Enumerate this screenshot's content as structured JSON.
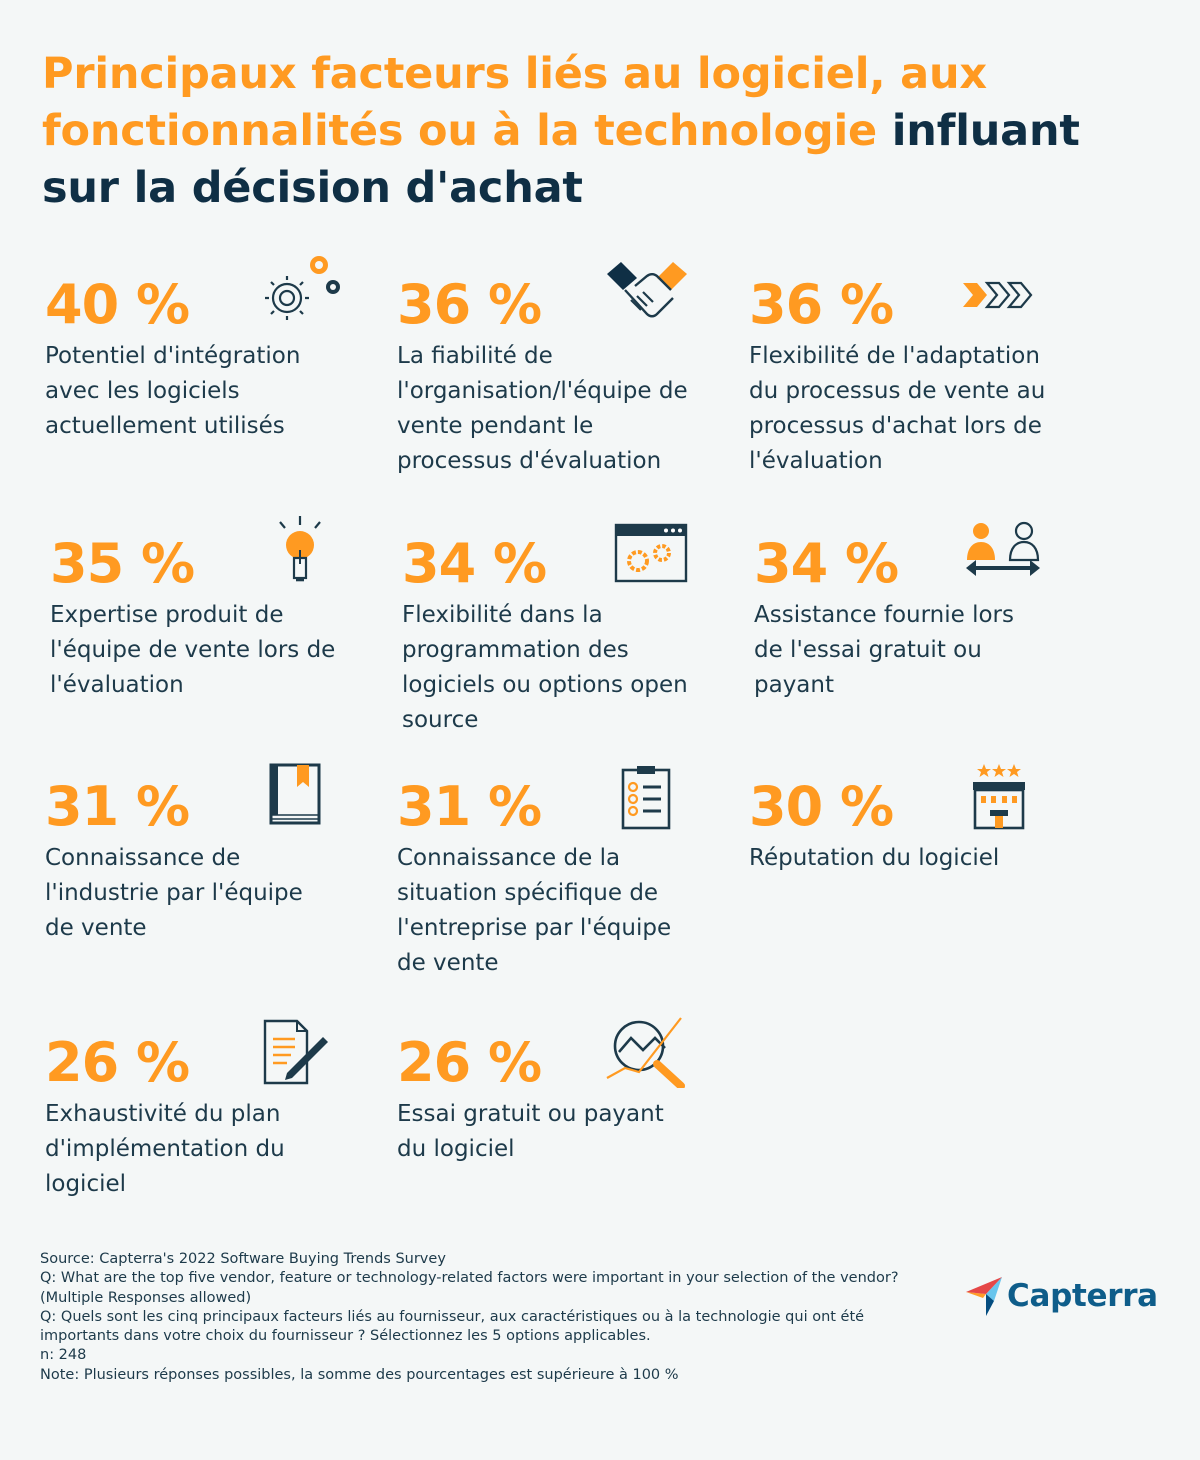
{
  "title": {
    "orange": "Principaux facteurs liés au logiciel, aux fonctionnalités ou à la technologie",
    "dark": "influant sur la décision d'achat"
  },
  "chart_data": {
    "type": "bar",
    "title": "Principaux facteurs liés au logiciel, aux fonctionnalités ou à la technologie influant sur la décision d'achat",
    "unit": "%",
    "categories": [
      "Potentiel d'intégration avec les logiciels actuellement utilisés",
      "La fiabilité de l'organisation/l'équipe de vente pendant le processus d'évaluation",
      "Flexibilité de l'adaptation du processus de vente au processus d'achat lors de l'évaluation",
      "Expertise produit de l'équipe de vente lors de l'évaluation",
      "Flexibilité dans la programmation des logiciels ou options open source",
      "Assistance fournie lors de l'essai gratuit ou payant",
      "Connaissance de l'industrie par l'équipe de vente",
      "Connaissance de la situation spécifique de l'entreprise par l'équipe de vente",
      "Réputation du logiciel",
      "Exhaustivité du plan d'implémentation du logiciel",
      "Essai gratuit ou payant du logiciel"
    ],
    "values": [
      40,
      36,
      36,
      35,
      34,
      34,
      31,
      31,
      30,
      26,
      26
    ]
  },
  "stats": [
    {
      "pct": "40 %",
      "label": "Potentiel d'intégration avec les logiciels actuellement utilisés",
      "icon": "gears-icon"
    },
    {
      "pct": "36 %",
      "label": "La fiabilité de l'organisation/l'équipe de vente pendant le processus d'évaluation",
      "icon": "handshake-icon"
    },
    {
      "pct": "36 %",
      "label": "Flexibilité de l'adaptation du processus de vente au processus d'achat lors de l'évaluation",
      "icon": "chevrons-icon"
    },
    {
      "pct": "35 %",
      "label": "Expertise produit de l'équipe de vente lors de l'évaluation",
      "icon": "lightbulb-icon"
    },
    {
      "pct": "34 %",
      "label": "Flexibilité dans la programmation des logiciels ou options open source",
      "icon": "browser-gears-icon"
    },
    {
      "pct": "34 %",
      "label": "Assistance fournie lors de l'essai gratuit ou payant",
      "icon": "people-exchange-icon"
    },
    {
      "pct": "31 %",
      "label": "Connaissance de l'industrie par l'équipe de vente",
      "icon": "book-icon"
    },
    {
      "pct": "31 %",
      "label": "Connaissance de la situation spécifique de l'entreprise par l'équipe de vente",
      "icon": "clipboard-checklist-icon"
    },
    {
      "pct": "30 %",
      "label": "Réputation du logiciel",
      "icon": "hotel-stars-icon"
    },
    {
      "pct": "26 %",
      "label": "Exhaustivité du plan d'implémentation du logiciel",
      "icon": "document-pen-icon"
    },
    {
      "pct": "26 %",
      "label": "Essai gratuit ou payant du logiciel",
      "icon": "magnifier-chart-icon"
    }
  ],
  "footer": {
    "source": "Source: Capterra's 2022 Software Buying Trends Survey",
    "q_en_1": "Q: What are the top five vendor, feature or technology-related factors were important in your selection of the vendor?",
    "q_en_2": "(Multiple Responses allowed)",
    "q_fr_1": "Q: Quels sont les cinq principaux facteurs liés au fournisseur, aux caractéristiques ou à la technologie qui ont été",
    "q_fr_2": "importants dans votre choix du fournisseur ?  Sélectionnez les 5 options applicables.",
    "n": "n: 248",
    "note": "Note: Plusieurs réponses possibles, la somme des pourcentages est supérieure à 100 %"
  },
  "logo": {
    "text": "Capterra"
  },
  "colors": {
    "orange": "#ff9a21",
    "navy": "#0f2f45",
    "text": "#1d3a4a",
    "bg": "#f4f7f7",
    "brand_blue": "#0e5d8a"
  }
}
